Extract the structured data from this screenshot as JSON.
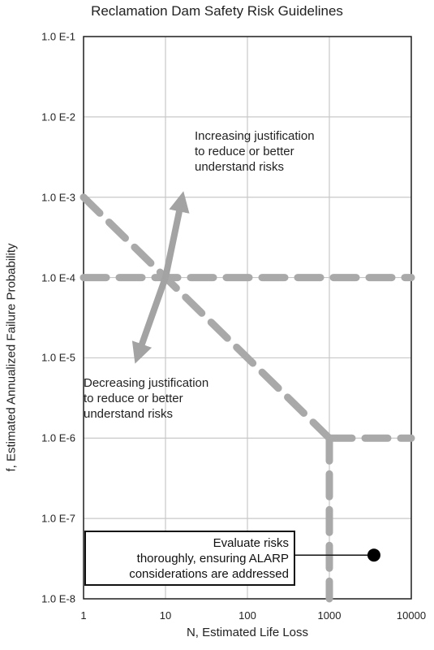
{
  "chart_data": {
    "type": "line",
    "title": "Reclamation Dam Safety Risk Guidelines",
    "xlabel": "N, Estimated Life Loss",
    "ylabel": "f, Estimated Annualized Failure Probability",
    "x_scale": "log",
    "y_scale": "log",
    "xlim": [
      1,
      10000
    ],
    "ylim": [
      1e-08,
      0.1
    ],
    "grid": true,
    "x_tick_labels": [
      "1",
      "10",
      "100",
      "1000",
      "10000"
    ],
    "x_tick_values": [
      1,
      10,
      100,
      1000,
      10000
    ],
    "y_tick_labels": [
      "1.0 E-1",
      "1.0 E-2",
      "1.0 E-3",
      "1.0 E-4",
      "1.0 E-5",
      "1.0 E-6",
      "1.0 E-7",
      "1.0 E-8"
    ],
    "y_tick_values": [
      0.1,
      0.01,
      0.001,
      0.0001,
      1e-05,
      1e-06,
      1e-07,
      1e-08
    ],
    "guideline_lines": [
      {
        "x": [
          1,
          10000
        ],
        "y": [
          0.0001,
          0.0001
        ]
      },
      {
        "x": [
          1,
          1000
        ],
        "y": [
          0.001,
          1e-06
        ]
      },
      {
        "x": [
          1000,
          10000
        ],
        "y": [
          1e-06,
          1e-06
        ]
      },
      {
        "x": [
          1000,
          1000
        ],
        "y": [
          1e-06,
          1e-08
        ]
      }
    ],
    "arrows": [
      {
        "from": [
          10,
          0.0001
        ],
        "to": [
          16,
          0.001
        ]
      },
      {
        "from": [
          10,
          0.0001
        ],
        "to": [
          4.5,
          1e-05
        ]
      }
    ],
    "point": {
      "x": 3500,
      "y": 3.5e-08
    },
    "annotations": {
      "increasing": [
        "Increasing justification",
        "to reduce or better",
        "understand risks"
      ],
      "decreasing": [
        "Decreasing justification",
        "to reduce or better",
        "understand risks"
      ],
      "evaluate": [
        "Evaluate risks",
        "thoroughly, ensuring ALARP",
        "considerations are addressed"
      ]
    },
    "colors": {
      "guideline": "#a9a9a9",
      "arrow": "#a3a3a3",
      "grid": "#c8c8c8",
      "frame": "#222222"
    }
  }
}
